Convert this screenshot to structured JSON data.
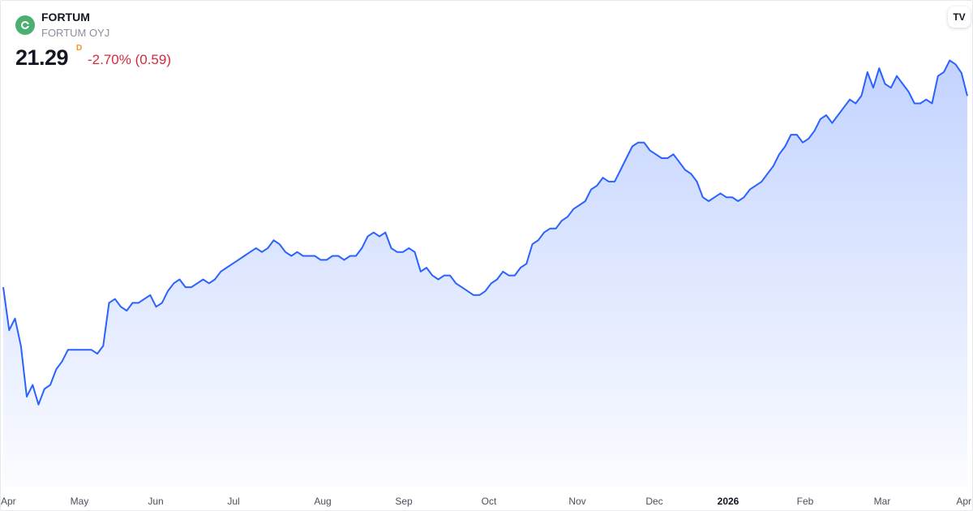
{
  "header": {
    "symbol": "FORTUM",
    "company": "FORTUM OYJ",
    "price": "21.29",
    "interval": "D",
    "change": "-2.70% (0.59)",
    "logo_icon": "fortum-logo-icon",
    "badge_icon": "tradingview-logo-icon",
    "badge_text": "TV"
  },
  "colors": {
    "line": "#2962ff",
    "change_negative": "#d6293d",
    "interval_marker": "#f7931a"
  },
  "chart_data": {
    "type": "area",
    "title": "",
    "xlabel": "",
    "ylabel": "",
    "grid": false,
    "y_axis_visible": false,
    "x_ticks": [
      {
        "label": "Apr",
        "bold": false
      },
      {
        "label": "May",
        "bold": false
      },
      {
        "label": "Jun",
        "bold": false
      },
      {
        "label": "Jul",
        "bold": false
      },
      {
        "label": "Aug",
        "bold": false
      },
      {
        "label": "Sep",
        "bold": false
      },
      {
        "label": "Oct",
        "bold": false
      },
      {
        "label": "Nov",
        "bold": false
      },
      {
        "label": "Dec",
        "bold": false
      },
      {
        "label": "2026",
        "bold": true
      },
      {
        "label": "Feb",
        "bold": false
      },
      {
        "label": "Mar",
        "bold": false
      },
      {
        "label": "Apr",
        "bold": false
      }
    ],
    "ylim": [
      11.3,
      22.5
    ],
    "series": [
      {
        "values": [
          16.4,
          15.3,
          15.6,
          14.9,
          13.6,
          13.9,
          13.4,
          13.8,
          13.9,
          14.3,
          14.5,
          14.8,
          14.8,
          14.8,
          14.8,
          14.8,
          14.7,
          14.9,
          16.0,
          16.1,
          15.9,
          15.8,
          16.0,
          16.0,
          16.1,
          16.2,
          15.9,
          16.0,
          16.3,
          16.5,
          16.6,
          16.4,
          16.4,
          16.5,
          16.6,
          16.5,
          16.6,
          16.8,
          16.9,
          17.0,
          17.1,
          17.2,
          17.3,
          17.4,
          17.3,
          17.4,
          17.6,
          17.5,
          17.3,
          17.2,
          17.3,
          17.2,
          17.2,
          17.2,
          17.1,
          17.1,
          17.2,
          17.2,
          17.1,
          17.2,
          17.2,
          17.4,
          17.7,
          17.8,
          17.7,
          17.8,
          17.4,
          17.3,
          17.3,
          17.4,
          17.3,
          16.8,
          16.9,
          16.7,
          16.6,
          16.7,
          16.7,
          16.5,
          16.4,
          16.3,
          16.2,
          16.2,
          16.3,
          16.5,
          16.6,
          16.8,
          16.7,
          16.7,
          16.9,
          17.0,
          17.5,
          17.6,
          17.8,
          17.9,
          17.9,
          18.1,
          18.2,
          18.4,
          18.5,
          18.6,
          18.9,
          19.0,
          19.2,
          19.1,
          19.1,
          19.4,
          19.7,
          20.0,
          20.1,
          20.1,
          19.9,
          19.8,
          19.7,
          19.7,
          19.8,
          19.6,
          19.4,
          19.3,
          19.1,
          18.7,
          18.6,
          18.7,
          18.8,
          18.7,
          18.7,
          18.6,
          18.7,
          18.9,
          19.0,
          19.1,
          19.3,
          19.5,
          19.8,
          20.0,
          20.3,
          20.3,
          20.1,
          20.2,
          20.4,
          20.7,
          20.8,
          20.6,
          20.8,
          21.0,
          21.2,
          21.1,
          21.3,
          21.9,
          21.5,
          22.0,
          21.6,
          21.5,
          21.8,
          21.6,
          21.4,
          21.1,
          21.1,
          21.2,
          21.1,
          21.8,
          21.9,
          22.2,
          22.1,
          21.88,
          21.29
        ]
      }
    ]
  }
}
